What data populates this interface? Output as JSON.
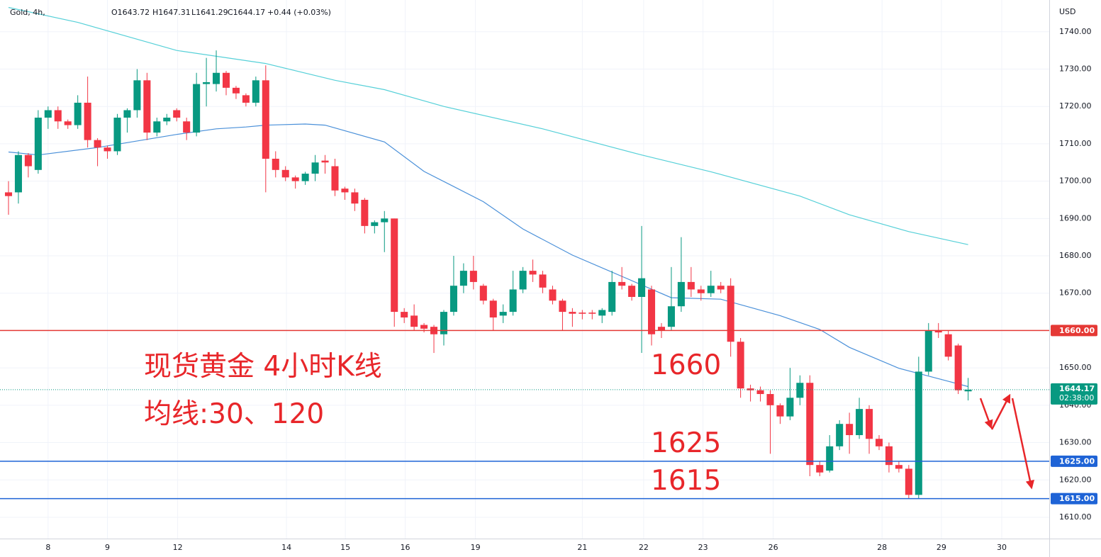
{
  "chart_data": {
    "type": "candlestick",
    "header": {
      "symbol": "Gold, 4h,",
      "ohlc": [
        "O1643.72",
        "H1647.31",
        "L1641.29",
        "C1644.17",
        "+0.44 (+0.03%)"
      ]
    },
    "y_unit": "USD",
    "x": [
      0,
      1,
      2,
      3,
      4,
      5,
      6,
      7,
      8,
      9,
      10,
      11,
      12,
      13,
      14,
      15,
      16,
      17,
      18,
      19,
      20,
      21,
      22,
      23,
      24,
      25,
      26,
      27,
      28,
      29,
      30,
      31,
      32,
      33,
      34,
      35,
      36,
      37,
      38,
      39,
      40,
      41,
      42,
      43,
      44,
      45,
      46,
      47,
      48,
      49,
      50,
      51,
      52,
      53,
      54,
      55,
      56,
      57,
      58,
      59,
      60,
      61,
      62,
      63,
      64,
      65,
      66,
      67,
      68,
      69,
      70,
      71,
      72,
      73,
      74,
      75,
      76,
      77,
      78,
      79,
      80,
      81,
      82,
      83,
      84,
      85,
      86,
      87,
      88,
      89,
      90,
      91,
      92,
      93,
      94,
      95,
      96,
      97
    ],
    "open": [
      1697,
      1697,
      1707,
      1703,
      1717,
      1719,
      1716,
      1715,
      1721,
      1711,
      1709,
      1708,
      1717,
      1719,
      1727,
      1713,
      1716,
      1719,
      1716,
      1713,
      1726,
      1726,
      1729,
      1725,
      1723,
      1721,
      1727,
      1706,
      1703,
      1701,
      1700,
      1702,
      1705.5,
      1704,
      1698,
      1697,
      1695,
      1688,
      1689,
      1690,
      1665,
      1664,
      1661.5,
      1661,
      1659,
      1665,
      1672,
      1676,
      1672,
      1668,
      1664,
      1665,
      1671,
      1676,
      1675,
      1671,
      1668,
      1665,
      1664.8,
      1664.8,
      1664,
      1665,
      1673,
      1672,
      1669,
      1671,
      1661,
      1661,
      1666.5,
      1673,
      1671,
      1670,
      1672,
      1672,
      1657,
      1644.5,
      1644,
      1643,
      1640,
      1637,
      1642,
      1646,
      1624,
      1622.5,
      1629,
      1635,
      1632,
      1639,
      1631,
      1629,
      1624,
      1623,
      1616,
      1649,
      1660,
      1659,
      1656,
      1643.72
    ],
    "high": [
      1700,
      1708,
      1707.5,
      1719,
      1720,
      1720,
      1716.5,
      1723,
      1728,
      1711.5,
      1709.5,
      1718,
      1719.5,
      1730,
      1729,
      1717,
      1718,
      1719.5,
      1717,
      1729,
      1733,
      1735,
      1729.5,
      1725.5,
      1723.5,
      1728,
      1731,
      1708,
      1704,
      1701.5,
      1702.5,
      1707,
      1707,
      1706,
      1698.5,
      1698,
      1695.5,
      1689.5,
      1692,
      1690,
      1666,
      1667,
      1662,
      1661.5,
      1665.5,
      1680,
      1678,
      1680,
      1672.5,
      1668.5,
      1667,
      1676,
      1677,
      1679,
      1676,
      1672,
      1668.5,
      1666,
      1665.5,
      1665.5,
      1666,
      1676,
      1677,
      1672.5,
      1688,
      1672,
      1662,
      1677,
      1685,
      1677,
      1672,
      1676,
      1673,
      1674,
      1658,
      1645.5,
      1645,
      1644,
      1640.5,
      1650,
      1648,
      1648,
      1625,
      1632,
      1636,
      1638,
      1642,
      1640,
      1632,
      1630,
      1625,
      1624,
      1653,
      1662,
      1662,
      1660,
      1656.5,
      1647.31
    ],
    "low": [
      1691,
      1694,
      1701,
      1702,
      1714,
      1714,
      1714,
      1714,
      1709,
      1704,
      1706,
      1707,
      1713,
      1717,
      1711,
      1712,
      1715,
      1716,
      1711,
      1712,
      1720,
      1724,
      1723,
      1722,
      1720,
      1720,
      1697,
      1701,
      1700,
      1698,
      1699,
      1700,
      1702,
      1696,
      1695,
      1692,
      1686,
      1686,
      1681,
      1661,
      1662,
      1660,
      1659.5,
      1654,
      1656,
      1664,
      1670,
      1671,
      1667,
      1660,
      1662,
      1664,
      1670,
      1673,
      1670,
      1667,
      1660,
      1661,
      1663,
      1663,
      1662,
      1664,
      1671,
      1668,
      1654,
      1656,
      1658,
      1660,
      1665,
      1669,
      1668,
      1669,
      1670,
      1653,
      1642,
      1641,
      1641,
      1627,
      1635,
      1636,
      1640,
      1621,
      1621,
      1622,
      1628,
      1627,
      1631,
      1627,
      1628,
      1622,
      1622,
      1615,
      1615,
      1648,
      1658,
      1652,
      1643,
      1641.29
    ],
    "close": [
      1696,
      1707,
      1704,
      1717,
      1719,
      1716,
      1715,
      1721,
      1711,
      1709,
      1708,
      1717,
      1719,
      1727,
      1713,
      1716,
      1717,
      1717,
      1713,
      1726,
      1726.5,
      1729,
      1725,
      1723.5,
      1721,
      1727,
      1706,
      1703,
      1701,
      1700,
      1702,
      1705,
      1705,
      1697.5,
      1697,
      1694,
      1688,
      1689,
      1690,
      1665,
      1663.5,
      1661,
      1660.5,
      1659,
      1665,
      1672,
      1676,
      1673,
      1668,
      1663.5,
      1665,
      1671,
      1676,
      1675,
      1671.5,
      1668,
      1665,
      1664.5,
      1664.5,
      1664.5,
      1665.5,
      1673,
      1672,
      1669,
      1674,
      1659,
      1660,
      1666.5,
      1673,
      1671,
      1670,
      1672,
      1671,
      1657,
      1644.5,
      1644,
      1643,
      1640,
      1637,
      1642,
      1646,
      1624,
      1622,
      1629,
      1635,
      1632,
      1639,
      1631,
      1629,
      1624,
      1623,
      1616,
      1649,
      1660,
      1659.5,
      1653,
      1644,
      1644.17
    ],
    "up_color": "#089981",
    "down_color": "#f23645",
    "series": [
      {
        "color": "#4a90d9",
        "x": [
          0,
          3,
          9,
          17,
          21,
          24,
          26,
          30,
          32,
          38,
          42,
          48,
          52,
          57,
          62,
          67,
          72,
          78,
          82,
          85,
          90,
          95,
          97
        ],
        "values": [
          1707.8,
          1707,
          1709,
          1712.5,
          1714,
          1714.5,
          1715,
          1715.3,
          1715,
          1710.5,
          1702.6,
          1694.5,
          1687.2,
          1680.2,
          1674.5,
          1668.8,
          1668.4,
          1664,
          1660.3,
          1655.5,
          1649.9,
          1646.4,
          1645
        ]
      },
      {
        "color": "#56d0d8",
        "x": [
          0,
          7,
          17,
          26,
          33,
          38,
          44,
          54,
          64,
          71,
          80,
          85,
          91,
          97
        ],
        "values": [
          1746.5,
          1742.5,
          1735,
          1731.5,
          1727,
          1724.5,
          1720,
          1714,
          1707,
          1702.5,
          1696,
          1691,
          1686.5,
          1683
        ]
      }
    ],
    "levels": [
      {
        "value": 1660,
        "label": "1660.00",
        "color": "#e53935"
      },
      {
        "value": 1625,
        "label": "1625.00",
        "color": "#1e63d6"
      },
      {
        "value": 1615,
        "label": "1615.00",
        "color": "#1e63d6"
      }
    ],
    "last_price": {
      "value": 1644.17,
      "label": "1644.17",
      "countdown": "02:38:00",
      "color": "#089981"
    },
    "annotations": [
      "现货黄金 4小时K线",
      "均线:30、120",
      "1660",
      "1625",
      "1615"
    ],
    "xlim": [
      -0.86,
      105.2
    ],
    "ylim": [
      1604.3,
      1748.5
    ],
    "xticks": [
      {
        "value": 4,
        "label": "8"
      },
      {
        "value": 10,
        "label": "9"
      },
      {
        "value": 17.1,
        "label": "12"
      },
      {
        "value": 28.1,
        "label": "14"
      },
      {
        "value": 34.05,
        "label": "15"
      },
      {
        "value": 40.1,
        "label": "16"
      },
      {
        "value": 47.2,
        "label": "19"
      },
      {
        "value": 58,
        "label": "21"
      },
      {
        "value": 64.2,
        "label": "22"
      },
      {
        "value": 70.2,
        "label": "23"
      },
      {
        "value": 77.3,
        "label": "26"
      },
      {
        "value": 88.3,
        "label": "28"
      },
      {
        "value": 94.3,
        "label": "29"
      },
      {
        "value": 100.4,
        "label": "30"
      }
    ],
    "yticks": [
      {
        "value": 1610,
        "label": "1610.00"
      },
      {
        "value": 1620,
        "label": "1620.00"
      },
      {
        "value": 1630,
        "label": "1630.00"
      },
      {
        "value": 1640,
        "label": "1640.00"
      },
      {
        "value": 1650,
        "label": "1650.00"
      },
      {
        "value": 1660,
        "label": "1660.00"
      },
      {
        "value": 1670,
        "label": "1670.00"
      },
      {
        "value": 1680,
        "label": "1680.00"
      },
      {
        "value": 1690,
        "label": "1690.00"
      },
      {
        "value": 1700,
        "label": "1700.00"
      },
      {
        "value": 1710,
        "label": "1710.00"
      },
      {
        "value": 1720,
        "label": "1720.00"
      },
      {
        "value": 1730,
        "label": "1730.00"
      },
      {
        "value": 1740,
        "label": "1740.00"
      }
    ],
    "grid": true
  }
}
